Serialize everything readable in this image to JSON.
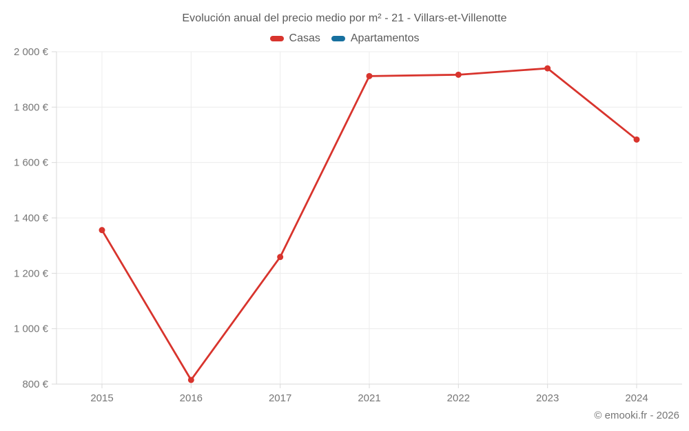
{
  "chart_data": {
    "type": "line",
    "title": "Evolución anual del precio medio por m² - 21 - Villars-et-Villenotte",
    "categories": [
      "2015",
      "2016",
      "2017",
      "2021",
      "2022",
      "2023",
      "2024"
    ],
    "series": [
      {
        "name": "Casas",
        "color": "#d8342d",
        "values": [
          1356,
          815,
          1259,
          1912,
          1917,
          1940,
          1683
        ]
      },
      {
        "name": "Apartamentos",
        "color": "#17709f",
        "values": []
      }
    ],
    "ylim": [
      800,
      2000
    ],
    "y_ticks": [
      {
        "value": 2000,
        "label": "2 000 €"
      },
      {
        "value": 1800,
        "label": "1 800 €"
      },
      {
        "value": 1600,
        "label": "1 600 €"
      },
      {
        "value": 1400,
        "label": "1 400 €"
      },
      {
        "value": 1200,
        "label": "1 200 €"
      },
      {
        "value": 1000,
        "label": "1 000 €"
      },
      {
        "value": 800,
        "label": "800 €"
      }
    ],
    "grid": true,
    "legend_position": "top",
    "footer": "© emooki.fr - 2026",
    "styles": {
      "background": "#ffffff",
      "grid_color": "#ececec",
      "axis_color": "#d9d9d9",
      "tick_text_color": "#767676",
      "title_color": "#5a5a5a",
      "legend_text_color": "#5a5a5a",
      "footer_color": "#767676"
    }
  }
}
